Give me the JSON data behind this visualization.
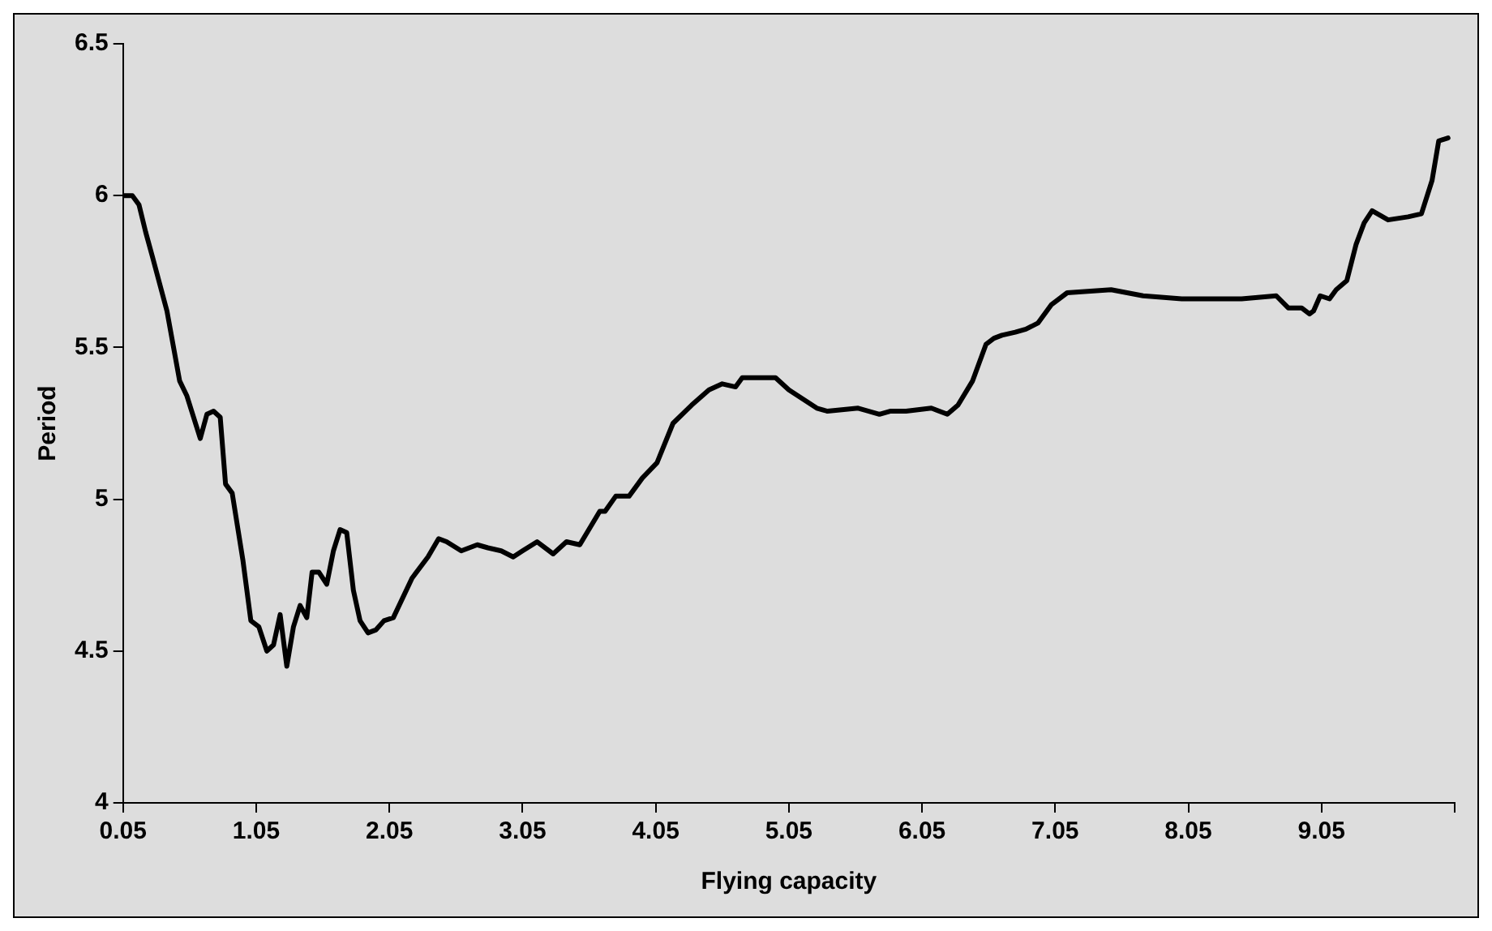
{
  "chart_data": {
    "type": "line",
    "xlabel": "Flying capacity",
    "ylabel": "Period",
    "x": [
      0.05,
      0.12,
      0.17,
      0.22,
      0.27,
      0.38,
      0.475,
      0.53,
      0.63,
      0.68,
      0.73,
      0.78,
      0.82,
      0.87,
      0.95,
      1.01,
      1.07,
      1.13,
      1.18,
      1.23,
      1.28,
      1.33,
      1.38,
      1.43,
      1.47,
      1.52,
      1.58,
      1.63,
      1.68,
      1.73,
      1.78,
      1.83,
      1.89,
      1.95,
      2.01,
      2.08,
      2.22,
      2.34,
      2.42,
      2.48,
      2.59,
      2.71,
      2.79,
      2.89,
      2.98,
      3.05,
      3.16,
      3.28,
      3.38,
      3.48,
      3.63,
      3.67,
      3.75,
      3.85,
      3.95,
      4.06,
      4.18,
      4.32,
      4.45,
      4.55,
      4.65,
      4.7,
      4.85,
      4.95,
      5.05,
      5.26,
      5.34,
      5.57,
      5.73,
      5.81,
      5.93,
      6.12,
      6.24,
      6.32,
      6.43,
      6.53,
      6.59,
      6.65,
      6.75,
      6.83,
      6.92,
      7.02,
      7.14,
      7.47,
      7.71,
      8.0,
      8.45,
      8.71,
      8.8,
      8.9,
      8.96,
      8.99,
      9.04,
      9.11,
      9.16,
      9.24,
      9.31,
      9.37,
      9.43,
      9.55,
      9.7,
      9.8,
      9.88,
      9.93,
      10.0
    ],
    "values": [
      6.0,
      6.0,
      5.97,
      5.88,
      5.8,
      5.62,
      5.39,
      5.34,
      5.2,
      5.28,
      5.29,
      5.27,
      5.05,
      5.02,
      4.8,
      4.6,
      4.58,
      4.5,
      4.52,
      4.62,
      4.45,
      4.58,
      4.65,
      4.61,
      4.76,
      4.76,
      4.72,
      4.83,
      4.9,
      4.89,
      4.7,
      4.6,
      4.56,
      4.57,
      4.6,
      4.61,
      4.74,
      4.81,
      4.87,
      4.86,
      4.83,
      4.85,
      4.84,
      4.83,
      4.81,
      4.83,
      4.86,
      4.82,
      4.86,
      4.85,
      4.96,
      4.96,
      5.01,
      5.01,
      5.07,
      5.12,
      5.25,
      5.31,
      5.36,
      5.38,
      5.37,
      5.4,
      5.4,
      5.4,
      5.36,
      5.3,
      5.29,
      5.3,
      5.28,
      5.29,
      5.29,
      5.3,
      5.28,
      5.31,
      5.39,
      5.51,
      5.53,
      5.54,
      5.55,
      5.56,
      5.58,
      5.64,
      5.68,
      5.69,
      5.67,
      5.66,
      5.66,
      5.67,
      5.63,
      5.63,
      5.61,
      5.62,
      5.67,
      5.66,
      5.69,
      5.72,
      5.84,
      5.91,
      5.95,
      5.92,
      5.93,
      5.94,
      6.05,
      6.18,
      6.19
    ],
    "color": "#000000",
    "xlim": [
      0.05,
      10.05
    ],
    "xticks": [
      0.05,
      1.05,
      2.05,
      3.05,
      4.05,
      5.05,
      6.05,
      7.05,
      8.05,
      9.05,
      {
        "value": 10.05,
        "label": null
      }
    ],
    "ylim": [
      4,
      6.5
    ],
    "yticks": [
      4,
      4.5,
      5,
      5.5,
      6,
      6.5
    ],
    "grid": false,
    "legend": false,
    "marker": "none",
    "line_style": "solid"
  }
}
